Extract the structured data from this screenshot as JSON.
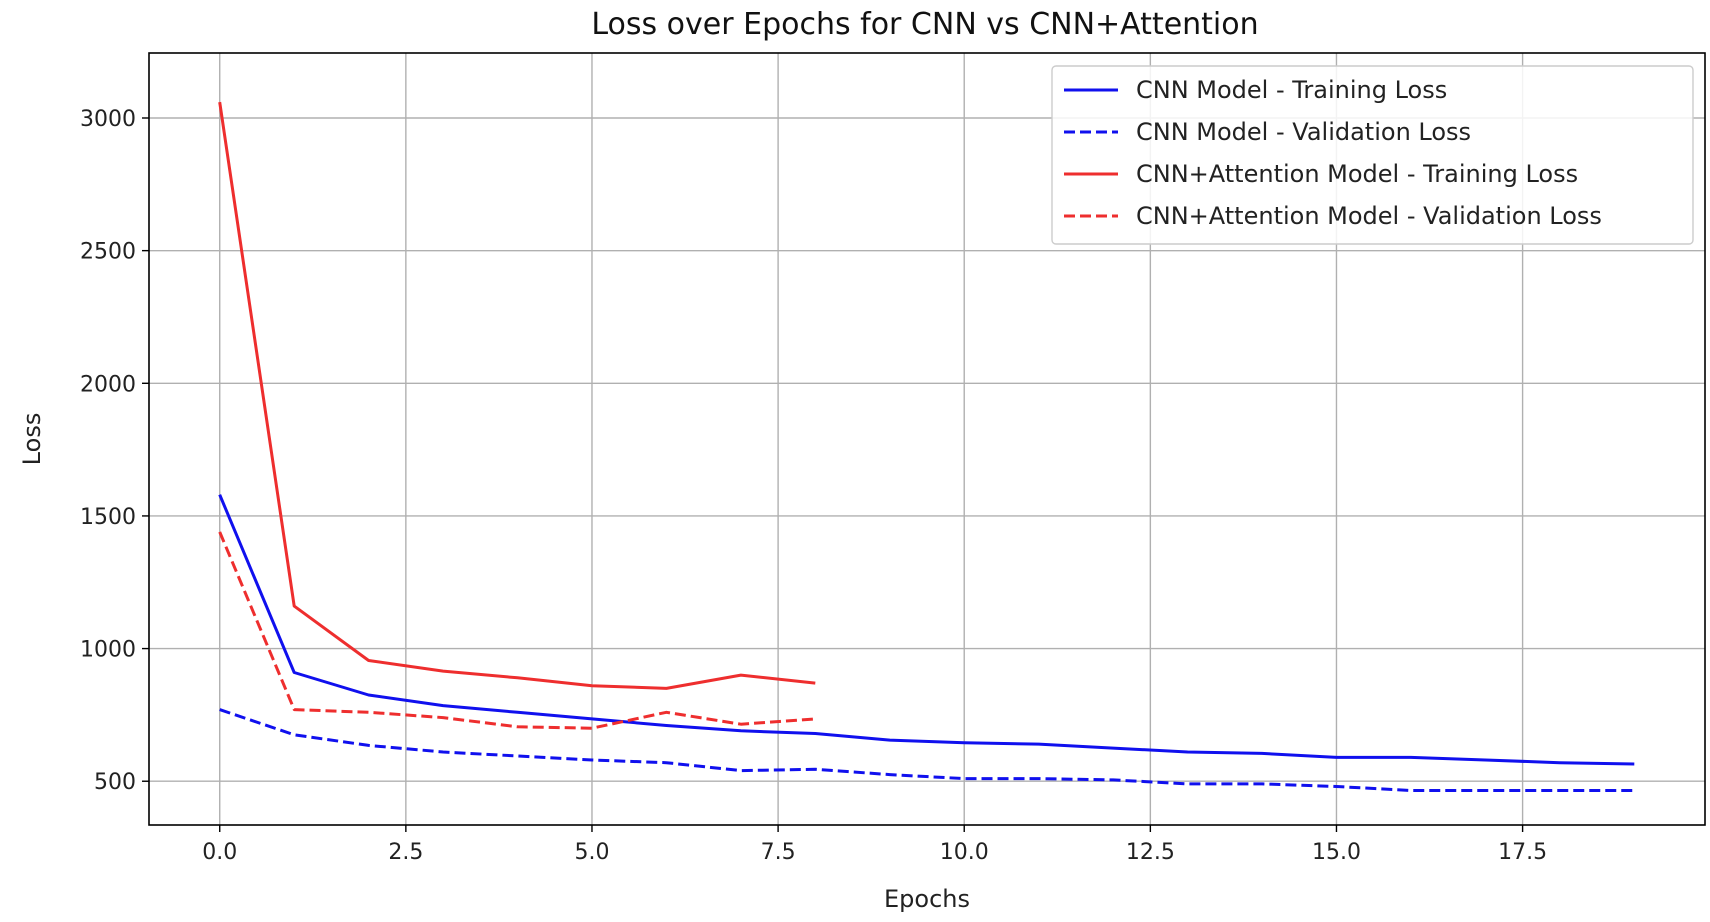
{
  "chart_data": {
    "type": "line",
    "title": "Loss over Epochs for CNN vs CNN+Attention",
    "xlabel": "Epochs",
    "ylabel": "Loss",
    "xlim": [
      -0.95,
      19.95
    ],
    "ylim": [
      335,
      3245
    ],
    "xticks": [
      0.0,
      2.5,
      5.0,
      7.5,
      10.0,
      12.5,
      15.0,
      17.5
    ],
    "xtick_labels": [
      "0.0",
      "2.5",
      "5.0",
      "7.5",
      "10.0",
      "12.5",
      "15.0",
      "17.5"
    ],
    "yticks": [
      500,
      1000,
      1500,
      2000,
      2500,
      3000
    ],
    "ytick_labels": [
      "500",
      "1000",
      "1500",
      "2000",
      "2500",
      "3000"
    ],
    "grid": true,
    "legend_position": "top-right",
    "series": [
      {
        "name": "CNN Model - Training Loss",
        "color": "#1010ee",
        "dash": "solid",
        "x": [
          0,
          1,
          2,
          3,
          4,
          5,
          6,
          7,
          8,
          9,
          10,
          11,
          12,
          13,
          14,
          15,
          16,
          17,
          18,
          19
        ],
        "values": [
          1580,
          910,
          825,
          785,
          760,
          735,
          710,
          690,
          680,
          655,
          645,
          640,
          625,
          610,
          605,
          590,
          590,
          580,
          570,
          565
        ]
      },
      {
        "name": "CNN Model - Validation Loss",
        "color": "#1010ee",
        "dash": "dashed",
        "x": [
          0,
          1,
          2,
          3,
          4,
          5,
          6,
          7,
          8,
          9,
          10,
          11,
          12,
          13,
          14,
          15,
          16,
          17,
          18,
          19
        ],
        "values": [
          770,
          675,
          635,
          610,
          595,
          580,
          570,
          540,
          545,
          525,
          510,
          510,
          505,
          490,
          490,
          480,
          465,
          465,
          465,
          465
        ]
      },
      {
        "name": "CNN+Attention Model - Training Loss",
        "color": "#ee2e2e",
        "dash": "solid",
        "x": [
          0,
          1,
          2,
          3,
          4,
          5,
          6,
          7,
          8
        ],
        "values": [
          3060,
          1160,
          955,
          915,
          890,
          860,
          850,
          900,
          870
        ]
      },
      {
        "name": "CNN+Attention Model - Validation Loss",
        "color": "#ee2e2e",
        "dash": "dashed",
        "x": [
          0,
          1,
          2,
          3,
          4,
          5,
          6,
          7,
          8
        ],
        "values": [
          1440,
          770,
          760,
          740,
          705,
          700,
          760,
          715,
          735
        ]
      }
    ]
  }
}
